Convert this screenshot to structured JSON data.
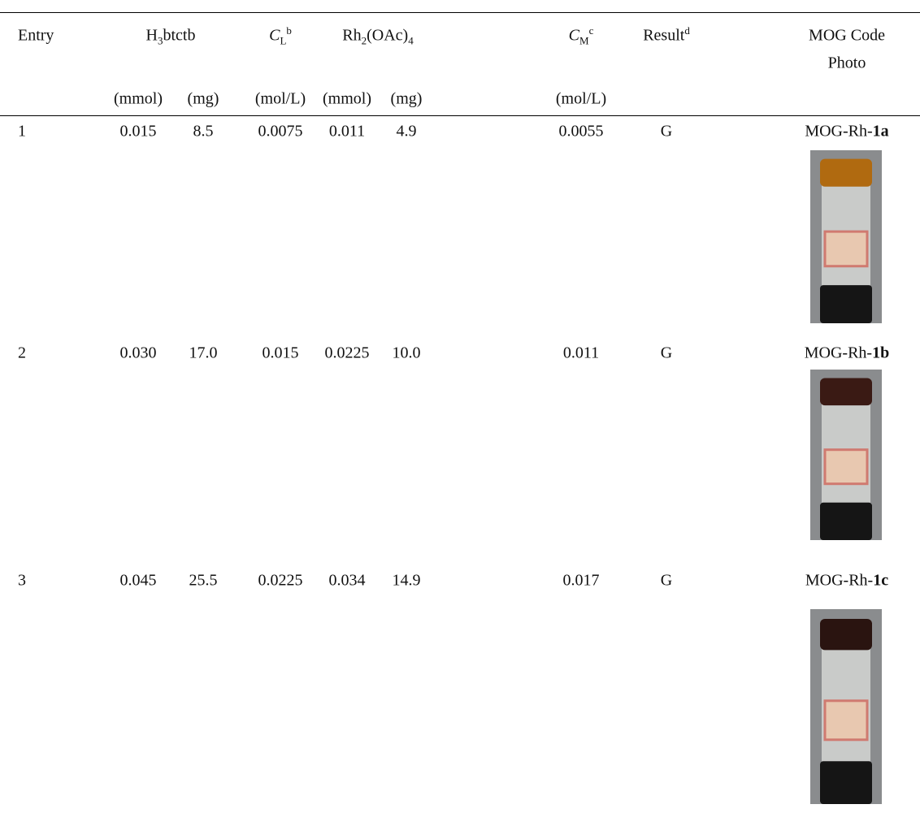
{
  "header": {
    "columns": [
      [
        {
          "text": "Entry"
        }
      ],
      [
        {
          "text": "H"
        },
        {
          "sub": "3"
        },
        {
          "text": "btctb"
        }
      ],
      [
        {
          "italic": "C"
        },
        {
          "sub": "L"
        },
        {
          "sup": "b"
        }
      ],
      [
        {
          "text": "Rh"
        },
        {
          "sub": "2"
        },
        {
          "text": "(OAc)"
        },
        {
          "sub": "4"
        }
      ],
      [
        {
          "italic": "C"
        },
        {
          "sub": "M"
        },
        {
          "sup": "c"
        }
      ],
      [
        {
          "text": "Result"
        },
        {
          "sup": "d"
        }
      ],
      [
        {
          "text": "MOG Code"
        }
      ]
    ],
    "photo_label": "Photo",
    "units": [
      "(mmol)",
      "(mg)",
      "(mol/L)",
      "(mmol)",
      "(mg)",
      "(mol/L)"
    ]
  },
  "rows": [
    {
      "entry": "1",
      "values": [
        "0.015",
        "8.5",
        "0.0075",
        "0.011",
        "4.9",
        "0.0055"
      ],
      "result": "G",
      "code": {
        "prefix": "MOG-Rh-",
        "bold": "1a"
      }
    },
    {
      "entry": "2",
      "values": [
        "0.030",
        "17.0",
        "0.015",
        "0.0225",
        "10.0",
        "0.011"
      ],
      "result": "G",
      "code": {
        "prefix": "MOG-Rh-",
        "bold": "1b"
      }
    },
    {
      "entry": "3",
      "values": [
        "0.045",
        "25.5",
        "0.0225",
        "0.034",
        "14.9",
        "0.017"
      ],
      "result": "G",
      "code": {
        "prefix": "MOG-Rh-",
        "bold": "1c"
      }
    }
  ]
}
